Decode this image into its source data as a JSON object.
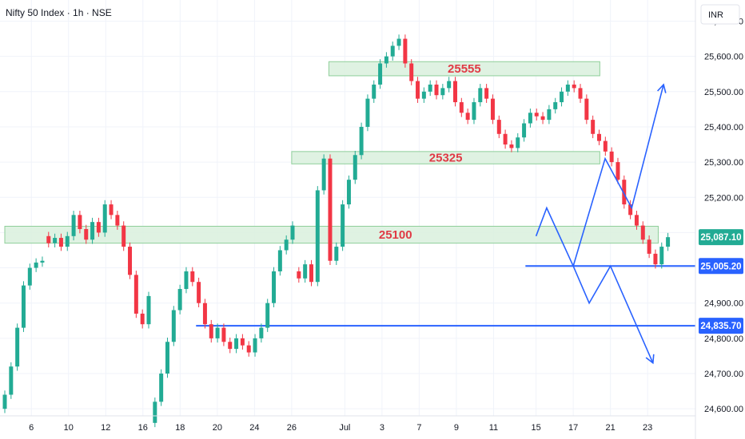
{
  "chart_data": {
    "type": "candlestick",
    "title": "Nifty 50 Index · 1h · NSE",
    "currency": "INR",
    "ylim": [
      24580,
      25760
    ],
    "yticks": [
      24600,
      24700,
      24800,
      24900,
      25000,
      25100,
      25200,
      25300,
      25400,
      25500,
      25600,
      25700
    ],
    "ytick_labels": [
      "24,600.00",
      "24,700.00",
      "24,800.00",
      "24,900.00",
      "25,000.00",
      "25,100.00",
      "25,200.00",
      "25,300.00",
      "25,400.00",
      "25,500.00",
      "25,600.00",
      "25,700.00"
    ],
    "xlim": [
      0,
      130
    ],
    "xticks": [
      {
        "label": "6",
        "x": 5
      },
      {
        "label": "10",
        "x": 12
      },
      {
        "label": "12",
        "x": 19
      },
      {
        "label": "16",
        "x": 26
      },
      {
        "label": "18",
        "x": 33
      },
      {
        "label": "20",
        "x": 40
      },
      {
        "label": "24",
        "x": 47
      },
      {
        "label": "26",
        "x": 54
      },
      {
        "label": "Jul",
        "x": 64
      },
      {
        "label": "3",
        "x": 71
      },
      {
        "label": "7",
        "x": 78
      },
      {
        "label": "9",
        "x": 85
      },
      {
        "label": "11",
        "x": 92
      },
      {
        "label": "15",
        "x": 100
      },
      {
        "label": "17",
        "x": 107
      },
      {
        "label": "21",
        "x": 114
      },
      {
        "label": "23",
        "x": 121
      }
    ],
    "candles": [
      [
        24600,
        24640
      ],
      [
        24640,
        24720
      ],
      [
        24720,
        24830
      ],
      [
        24830,
        24950
      ],
      [
        24950,
        25000
      ],
      [
        25000,
        25015
      ],
      [
        25015,
        25020
      ],
      [
        25090,
        25070
      ],
      [
        25070,
        25085
      ],
      [
        25085,
        25060
      ],
      [
        25060,
        25090
      ],
      [
        25090,
        25150
      ],
      [
        25150,
        25110
      ],
      [
        25110,
        25080
      ],
      [
        25080,
        25130
      ],
      [
        25130,
        25100
      ],
      [
        25100,
        25180
      ],
      [
        25180,
        25150
      ],
      [
        25150,
        25120
      ],
      [
        25120,
        25060
      ],
      [
        25060,
        24980
      ],
      [
        24980,
        24870
      ],
      [
        24870,
        24840
      ],
      [
        24840,
        24920
      ],
      [
        24560,
        24620
      ],
      [
        24620,
        24700
      ],
      [
        24700,
        24790
      ],
      [
        24790,
        24880
      ],
      [
        24880,
        24940
      ],
      [
        24940,
        24990
      ],
      [
        24990,
        24960
      ],
      [
        24960,
        24900
      ],
      [
        24900,
        24840
      ],
      [
        24840,
        24800
      ],
      [
        24800,
        24830
      ],
      [
        24830,
        24790
      ],
      [
        24790,
        24770
      ],
      [
        24770,
        24800
      ],
      [
        24800,
        24780
      ],
      [
        24780,
        24760
      ],
      [
        24760,
        24800
      ],
      [
        24800,
        24830
      ],
      [
        24830,
        24900
      ],
      [
        24900,
        24990
      ],
      [
        24990,
        25050
      ],
      [
        25050,
        25080
      ],
      [
        25080,
        25120
      ],
      [
        24990,
        24970
      ],
      [
        24970,
        25010
      ],
      [
        25010,
        24960
      ],
      [
        24960,
        25220
      ],
      [
        25220,
        25310
      ],
      [
        25310,
        25020
      ],
      [
        25020,
        25060
      ],
      [
        25060,
        25180
      ],
      [
        25180,
        25250
      ],
      [
        25250,
        25320
      ],
      [
        25320,
        25400
      ],
      [
        25400,
        25480
      ],
      [
        25480,
        25520
      ],
      [
        25520,
        25580
      ],
      [
        25580,
        25600
      ],
      [
        25600,
        25630
      ],
      [
        25630,
        25650
      ],
      [
        25650,
        25580
      ],
      [
        25580,
        25530
      ],
      [
        25530,
        25480
      ],
      [
        25480,
        25500
      ],
      [
        25500,
        25520
      ],
      [
        25520,
        25490
      ],
      [
        25490,
        25510
      ],
      [
        25510,
        25530
      ],
      [
        25530,
        25470
      ],
      [
        25470,
        25440
      ],
      [
        25440,
        25420
      ],
      [
        25420,
        25470
      ],
      [
        25470,
        25510
      ],
      [
        25510,
        25480
      ],
      [
        25480,
        25420
      ],
      [
        25420,
        25380
      ],
      [
        25380,
        25350
      ],
      [
        25350,
        25340
      ],
      [
        25340,
        25370
      ],
      [
        25370,
        25410
      ],
      [
        25410,
        25440
      ],
      [
        25440,
        25430
      ],
      [
        25430,
        25420
      ],
      [
        25420,
        25450
      ],
      [
        25450,
        25470
      ],
      [
        25470,
        25500
      ],
      [
        25500,
        25520
      ],
      [
        25520,
        25510
      ],
      [
        25510,
        25480
      ],
      [
        25480,
        25420
      ],
      [
        25420,
        25380
      ],
      [
        25380,
        25360
      ],
      [
        25360,
        25330
      ],
      [
        25330,
        25300
      ],
      [
        25300,
        25250
      ],
      [
        25250,
        25180
      ],
      [
        25180,
        25150
      ],
      [
        25150,
        25120
      ],
      [
        25120,
        25080
      ],
      [
        25080,
        25040
      ],
      [
        25040,
        25010
      ],
      [
        25010,
        25060
      ],
      [
        25060,
        25087
      ]
    ],
    "zones": [
      {
        "label": "25555",
        "top": 25585,
        "bottom": 25545,
        "x_start": 61,
        "x_end": 112
      },
      {
        "label": "25325",
        "top": 25330,
        "bottom": 25295,
        "x_start": 54,
        "x_end": 112
      },
      {
        "label": "25100",
        "top": 25118,
        "bottom": 25070,
        "x_start": 0,
        "x_end": 123
      }
    ],
    "horizontal_lines": [
      {
        "level": 25005.2,
        "x_start": 98,
        "color": "#2962ff"
      },
      {
        "level": 24835.7,
        "x_start": 36,
        "color": "#2962ff"
      }
    ],
    "projection_paths": [
      {
        "points": [
          [
            100,
            25090
          ],
          [
            102,
            25170
          ],
          [
            107,
            25005
          ],
          [
            110,
            24900
          ],
          [
            114,
            25005
          ],
          [
            122,
            24730
          ]
        ],
        "color": "#2962ff"
      },
      {
        "points": [
          [
            107,
            25005
          ],
          [
            113,
            25310
          ],
          [
            118,
            25170
          ],
          [
            124,
            25520
          ]
        ],
        "color": "#2962ff"
      }
    ],
    "price_tags": [
      {
        "label": "25,087.10",
        "level": 25087.1,
        "color": "#22ab94"
      },
      {
        "label": "25,005.20",
        "level": 25005.2,
        "color": "#2962ff"
      },
      {
        "label": "24,835.70",
        "level": 24835.7,
        "color": "#2962ff"
      }
    ],
    "up_color": "#22ab94",
    "down_color": "#f23645",
    "zone_fill": "#d9f0dd",
    "zone_stroke": "#8fcf9a",
    "zone_label_color": "#e03a45"
  }
}
